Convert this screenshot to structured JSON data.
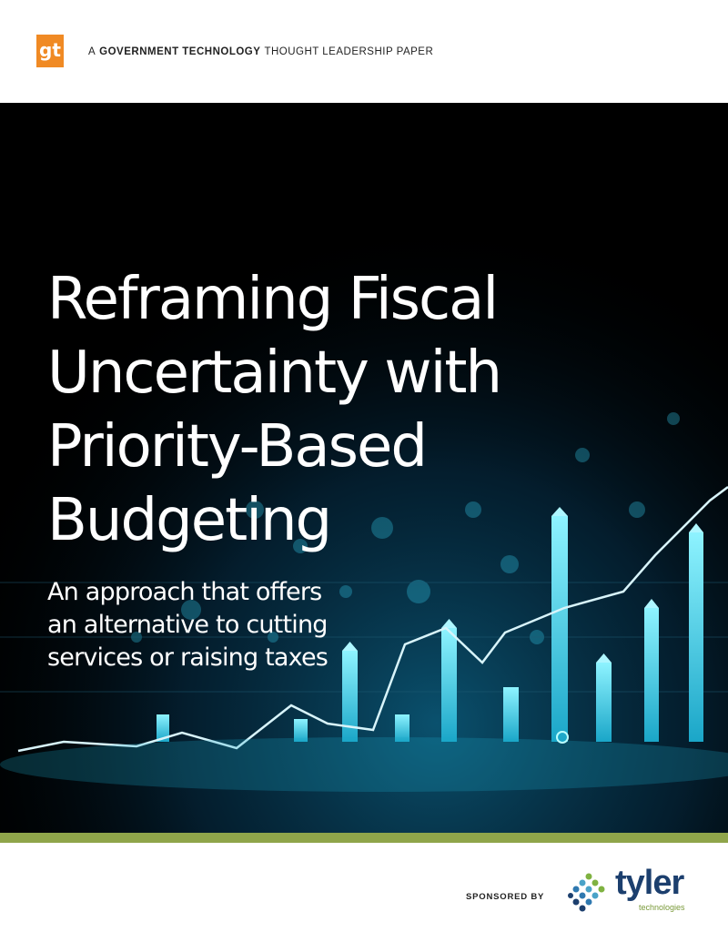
{
  "header": {
    "logo": "gt",
    "kicker_prefix": "A",
    "kicker_bold": "GOVERNMENT TECHNOLOGY",
    "kicker_suffix": "THOUGHT LEADERSHIP PAPER"
  },
  "title_lines": [
    "Reframing Fiscal",
    "Uncertainty with",
    "Priority-Based",
    "Budgeting"
  ],
  "subtitle_lines": [
    "An approach that offers",
    "an alternative to cutting",
    "services or raising taxes"
  ],
  "footer": {
    "sponsored_by": "SPONSORED BY",
    "sponsor_name": "tyler",
    "sponsor_tagline": "technologies"
  }
}
